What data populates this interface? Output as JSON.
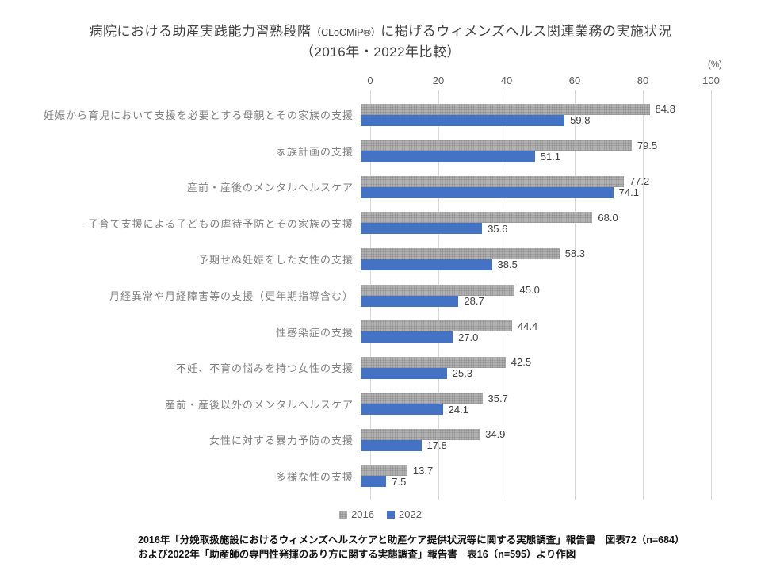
{
  "title": {
    "line1_prefix": "病院における助産実践能力習熟段階",
    "line1_paren": "（CLoCMiP®）",
    "line1_suffix": "に掲げるウィメンズヘルス関連業務の実施状況",
    "line2": "（2016年・2022年比較）"
  },
  "axis": {
    "unit": "(%)",
    "ticks": [
      "0",
      "20",
      "40",
      "60",
      "80",
      "100"
    ]
  },
  "legend": [
    {
      "label": "2016",
      "color": "#a6a6a6"
    },
    {
      "label": "2022",
      "color": "#4472c4"
    }
  ],
  "footer": {
    "line1": "2016年「分娩取扱施設におけるウィメンズヘルスケアと助産ケア提供状況等に関する実態調査」報告書　図表72（n=684）",
    "line2": "および2022年「助産師の専門性発揮のあり方に関する実態調査」報告書　表16（n=595）より作図"
  },
  "chart_data": {
    "type": "bar",
    "orientation": "horizontal",
    "title": "病院における助産実践能力習熟段階（CLoCMiP®）に掲げるウィメンズヘルス関連業務の実施状況（2016年・2022年比較）",
    "unit": "%",
    "xlim": [
      0,
      100
    ],
    "xticks": [
      0,
      20,
      40,
      60,
      80,
      100
    ],
    "grid": true,
    "legend_position": "bottom",
    "categories": [
      "妊娠から育児において支援を必要とする母親とその家族の支援",
      "家族計画の支援",
      "産前・産後のメンタルヘルスケア",
      "子育て支援による子どもの虐待予防とその家族の支援",
      "予期せぬ妊娠をした女性の支援",
      "月経異常や月経障害等の支援（更年期指導含む）",
      "性感染症の支援",
      "不妊、不育の悩みを持つ女性の支援",
      "産前・産後以外のメンタルヘルスケア",
      "女性に対する暴力予防の支援",
      "多様な性の支援"
    ],
    "series": [
      {
        "name": "2016",
        "color": "#a6a6a6",
        "values": [
          84.8,
          79.5,
          77.2,
          68.0,
          58.3,
          45.0,
          44.4,
          42.5,
          35.7,
          34.9,
          13.7
        ]
      },
      {
        "name": "2022",
        "color": "#4472c4",
        "values": [
          59.8,
          51.1,
          74.1,
          35.6,
          38.5,
          28.7,
          27.0,
          25.3,
          24.1,
          17.8,
          7.5
        ]
      }
    ]
  }
}
